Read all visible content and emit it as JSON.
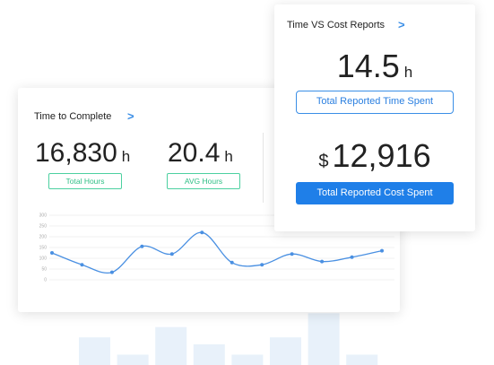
{
  "time_card": {
    "title": "Time to Complete",
    "arrow": ">",
    "metrics": [
      {
        "value": "16,830",
        "unit": "h",
        "button": "Total Hours"
      },
      {
        "value": "20.4",
        "unit": "h",
        "button": "AVG Hours"
      }
    ]
  },
  "report_card": {
    "title": "Time VS Cost Reports",
    "arrow": ">",
    "time": {
      "value": "14.5",
      "unit": "h",
      "button": "Total Reported Time Spent"
    },
    "cost": {
      "prefix": "$",
      "value": "12,916",
      "button": "Total Reported Cost Spent"
    }
  },
  "chart_data": [
    {
      "type": "line",
      "categories": [
        null,
        null,
        null,
        null,
        null,
        null,
        null,
        null,
        null,
        null,
        null,
        null
      ],
      "values": [
        125,
        70,
        35,
        155,
        120,
        220,
        80,
        70,
        120,
        85,
        105,
        135
      ],
      "color": "#4a90e2",
      "ylim": [
        0,
        300
      ],
      "yticks": [
        0,
        50,
        100,
        150,
        200,
        250,
        300
      ],
      "grid": true
    },
    {
      "type": "bar",
      "categories": [
        null,
        null,
        null,
        null,
        null,
        null,
        null,
        null
      ],
      "values": [
        40,
        15,
        55,
        30,
        15,
        40,
        75,
        15
      ],
      "color": "#d6e6f7",
      "ylim": [
        0,
        100
      ]
    }
  ]
}
